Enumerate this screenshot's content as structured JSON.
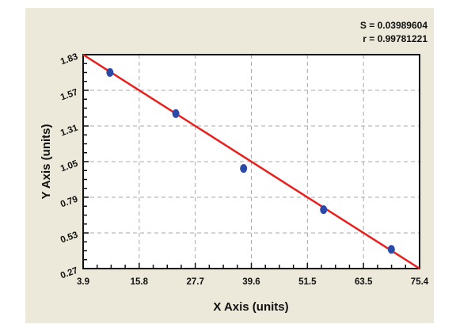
{
  "stats": {
    "s_label": "S = 0.03989604",
    "r_label": "r = 0.99781221"
  },
  "colors": {
    "panel": "#ece9da",
    "plot_bg": "#ffffff",
    "fit_line": "#e8211e",
    "points": "#2b4aa8",
    "grid": "#a8a8a8"
  },
  "chart_data": {
    "type": "scatter",
    "title": "",
    "xlabel": "X Axis (units)",
    "ylabel": "Y Axis (units)",
    "xlim": [
      3.9,
      75.4
    ],
    "ylim": [
      0.27,
      1.83
    ],
    "x_ticks": [
      "3.9",
      "15.8",
      "27.7",
      "39.6",
      "51.5",
      "63.5",
      "75.4"
    ],
    "y_ticks": [
      "0.27",
      "0.53",
      "0.79",
      "1.05",
      "1.31",
      "1.57",
      "1.83"
    ],
    "grid": true,
    "legend": null,
    "annotations": [
      "S = 0.03989604",
      "r = 0.99781221"
    ],
    "series": [
      {
        "name": "data points",
        "type": "scatter",
        "x": [
          9.6,
          23.6,
          38.0,
          55.0,
          69.4
        ],
        "y": [
          1.7,
          1.4,
          1.0,
          0.7,
          0.41
        ]
      },
      {
        "name": "linear fit",
        "type": "line",
        "x": [
          3.9,
          75.4
        ],
        "y": [
          1.83,
          0.27
        ]
      }
    ]
  }
}
